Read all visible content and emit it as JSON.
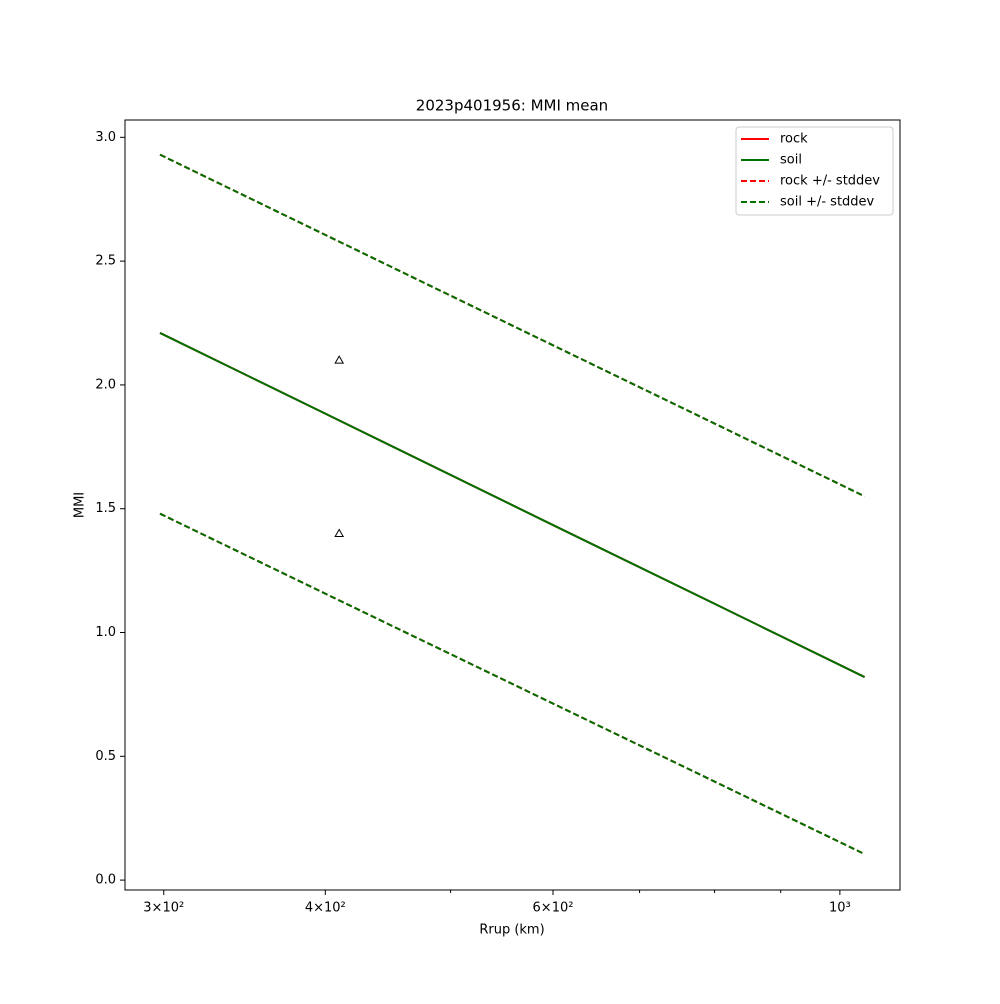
{
  "chart_data": {
    "type": "line",
    "title": "2023p401956: MMI mean",
    "xlabel": "Rrup (km)",
    "ylabel": "MMI",
    "xscale": "log",
    "xlim": [
      280,
      1113
    ],
    "ylim": [
      -0.04,
      3.07
    ],
    "xticks": [
      {
        "value": 300,
        "label": "3×10²"
      },
      {
        "value": 400,
        "label": "4×10²"
      },
      {
        "value": 600,
        "label": "6×10²"
      },
      {
        "value": 1000,
        "label": "10³"
      }
    ],
    "xminorticks": [
      500,
      700,
      800,
      900
    ],
    "yticks": [
      {
        "value": 0,
        "label": "0.0"
      },
      0.5,
      {
        "value": 1,
        "label": "1.0"
      },
      1.5,
      {
        "value": 2,
        "label": "2.0"
      },
      2.5,
      {
        "value": 3,
        "label": "3.0"
      }
    ],
    "grid": false,
    "legend": "upper right",
    "x": [
      298,
      400,
      600,
      800,
      1045
    ],
    "series": [
      {
        "name": "rock",
        "color": "#ff0000",
        "dashed": false,
        "values": [
          2.21,
          1.884,
          1.434,
          1.116,
          0.82
        ]
      },
      {
        "name": "soil",
        "color": "#007000",
        "dashed": false,
        "values": [
          2.21,
          1.884,
          1.434,
          1.116,
          0.82
        ]
      },
      {
        "name": "rock +/- stddev",
        "color": "#ff0000",
        "dashed": true,
        "upper": [
          2.93,
          2.606,
          2.16,
          1.844,
          1.55
        ],
        "lower": [
          1.48,
          1.157,
          0.713,
          0.398,
          0.105
        ]
      },
      {
        "name": "soil +/- stddev",
        "color": "#007000",
        "dashed": true,
        "upper": [
          2.93,
          2.606,
          2.16,
          1.844,
          1.55
        ],
        "lower": [
          1.48,
          1.157,
          0.713,
          0.398,
          0.105
        ]
      }
    ],
    "points": {
      "x": [
        410,
        410
      ],
      "y": [
        2.1,
        1.4
      ]
    }
  }
}
